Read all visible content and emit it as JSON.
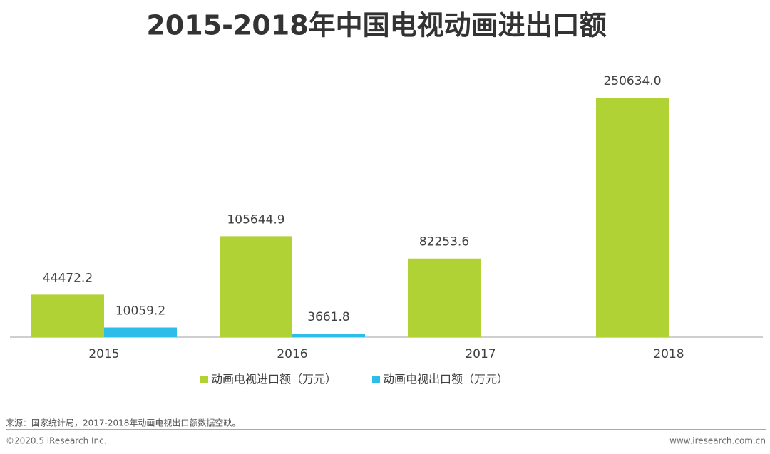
{
  "chart_data": {
    "type": "bar",
    "title": "2015-2018年中国电视动画进出口额",
    "categories": [
      "2015",
      "2016",
      "2017",
      "2018"
    ],
    "series": [
      {
        "name": "动画电视进口额（万元）",
        "color": "#b1d234",
        "values": [
          44472.2,
          105644.9,
          82253.6,
          250634.0
        ],
        "value_labels": [
          "44472.2",
          "105644.9",
          "82253.6",
          "250634.0"
        ]
      },
      {
        "name": "动画电视出口额（万元）",
        "color": "#2dbde8",
        "values": [
          10059.2,
          3661.8,
          null,
          null
        ]
      }
    ],
    "source": "来源：国家统计局，2017-2018年动画电视出口额数据空缺。",
    "copyright": "©2020.5 iResearch Inc.",
    "website": "www.iresearch.com.cn"
  }
}
